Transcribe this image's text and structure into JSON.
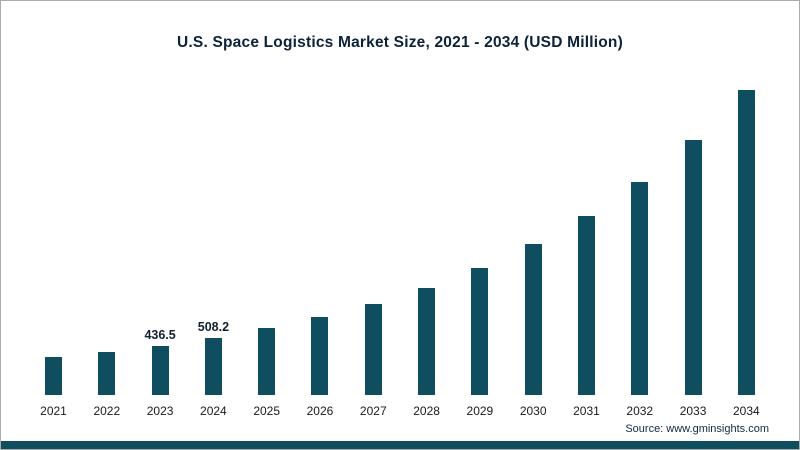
{
  "title": "U.S. Space Logistics Market Size, 2021 - 2034 (USD Million)",
  "source": "Source: www.gminsights.com",
  "colors": {
    "bar": "#0e4e5f",
    "footer_stripe": "#0e4e5f",
    "title_text": "#0b2239",
    "frame_border": "#ababab"
  },
  "chart_data": {
    "type": "bar",
    "title": "U.S. Space Logistics Market Size, 2021 - 2034 (USD Million)",
    "xlabel": "",
    "ylabel": "USD Million",
    "ylim": [
      0,
      2750
    ],
    "grid": false,
    "legend": false,
    "categories": [
      "2021",
      "2022",
      "2023",
      "2024",
      "2025",
      "2026",
      "2027",
      "2028",
      "2029",
      "2030",
      "2031",
      "2032",
      "2033",
      "2034"
    ],
    "values": [
      340,
      385,
      436.5,
      508.2,
      595,
      690,
      805,
      945,
      1130,
      1340,
      1590,
      1890,
      2260,
      2710
    ],
    "data_labels": {
      "2023": "436.5",
      "2024": "508.2"
    }
  }
}
